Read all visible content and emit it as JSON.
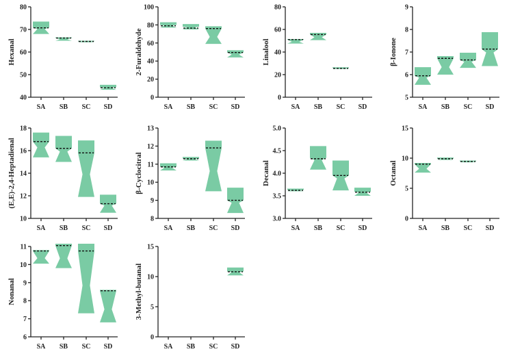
{
  "colors": {
    "violin": "#6cc59a",
    "median": "#111111"
  },
  "chart_data": [
    {
      "type": "violin",
      "ylabel": "Hexanal",
      "ylim": [
        40,
        80
      ],
      "yticks": [
        40,
        50,
        60,
        70,
        80
      ],
      "categories": [
        "SA",
        "SB",
        "SC",
        "SD"
      ],
      "series": [
        {
          "name": "SA",
          "min": 68,
          "max": 73.5,
          "median": 70.7
        },
        {
          "name": "SB",
          "min": 65,
          "max": 66.5,
          "median": 66.2
        },
        {
          "name": "SC",
          "min": 64.3,
          "max": 65,
          "median": 64.7
        },
        {
          "name": "SD",
          "min": 43.3,
          "max": 45.5,
          "median": 44.2
        }
      ]
    },
    {
      "type": "violin",
      "ylabel": "2-Furaldehyde",
      "ylim": [
        0,
        100
      ],
      "yticks": [
        0,
        20,
        40,
        60,
        80,
        100
      ],
      "categories": [
        "SA",
        "SB",
        "SC",
        "SD"
      ],
      "series": [
        {
          "name": "SA",
          "min": 77,
          "max": 83,
          "median": 79
        },
        {
          "name": "SB",
          "min": 75,
          "max": 81,
          "median": 76.5
        },
        {
          "name": "SC",
          "min": 59,
          "max": 78.5,
          "median": 76
        },
        {
          "name": "SD",
          "min": 44,
          "max": 52,
          "median": 49.5
        }
      ]
    },
    {
      "type": "violin",
      "ylabel": "Linalool",
      "ylim": [
        0,
        80
      ],
      "yticks": [
        0,
        20,
        40,
        60,
        80
      ],
      "categories": [
        "SA",
        "SB",
        "SC",
        "SD"
      ],
      "series": [
        {
          "name": "SA",
          "min": 47.5,
          "max": 51.5,
          "median": 51
        },
        {
          "name": "SB",
          "min": 50.5,
          "max": 57,
          "median": 55.5
        },
        {
          "name": "SC",
          "min": 25,
          "max": 26.5,
          "median": 25.5
        },
        {
          "name": "SD"
        }
      ]
    },
    {
      "type": "violin",
      "ylabel": "β-Ionone",
      "ylim": [
        5,
        9
      ],
      "yticks": [
        5,
        6,
        7,
        8,
        9
      ],
      "categories": [
        "SA",
        "SB",
        "SC",
        "SD"
      ],
      "series": [
        {
          "name": "SA",
          "min": 5.55,
          "max": 6.33,
          "median": 5.95
        },
        {
          "name": "SB",
          "min": 6.0,
          "max": 6.82,
          "median": 6.72
        },
        {
          "name": "SC",
          "min": 6.3,
          "max": 6.97,
          "median": 6.65
        },
        {
          "name": "SD",
          "min": 6.38,
          "max": 7.88,
          "median": 7.13
        }
      ]
    },
    {
      "type": "violin",
      "ylabel": "(E,E)-2,4-Heptadienal",
      "ylim": [
        10,
        18
      ],
      "yticks": [
        10,
        12,
        14,
        16,
        18
      ],
      "categories": [
        "SA",
        "SB",
        "SC",
        "SD"
      ],
      "series": [
        {
          "name": "SA",
          "min": 15.4,
          "max": 17.6,
          "median": 16.8
        },
        {
          "name": "SB",
          "min": 15.0,
          "max": 17.3,
          "median": 16.2
        },
        {
          "name": "SC",
          "min": 11.9,
          "max": 16.9,
          "median": 15.8
        },
        {
          "name": "SD",
          "min": 10.5,
          "max": 12.1,
          "median": 11.3
        }
      ]
    },
    {
      "type": "violin",
      "ylabel": "β-Cyclocitral",
      "ylim": [
        8,
        13
      ],
      "yticks": [
        8,
        9,
        10,
        11,
        12,
        13
      ],
      "categories": [
        "SA",
        "SB",
        "SC",
        "SD"
      ],
      "series": [
        {
          "name": "SA",
          "min": 10.65,
          "max": 11.05,
          "median": 10.85
        },
        {
          "name": "SB",
          "min": 11.2,
          "max": 11.4,
          "median": 11.3
        },
        {
          "name": "SC",
          "min": 9.5,
          "max": 12.3,
          "median": 11.9
        },
        {
          "name": "SD",
          "min": 8.3,
          "max": 9.7,
          "median": 9.0
        }
      ]
    },
    {
      "type": "violin",
      "ylabel": "Decanal",
      "ylim": [
        3.0,
        5.0
      ],
      "yticks": [
        "3.0",
        "3.5",
        "4.0",
        "4.5",
        "5.0"
      ],
      "categories": [
        "SA",
        "SB",
        "SC",
        "SD"
      ],
      "series": [
        {
          "name": "SA",
          "min": 3.6,
          "max": 3.66,
          "median": 3.62
        },
        {
          "name": "SB",
          "min": 4.08,
          "max": 4.6,
          "median": 4.32
        },
        {
          "name": "SC",
          "min": 3.62,
          "max": 4.28,
          "median": 3.95
        },
        {
          "name": "SD",
          "min": 3.5,
          "max": 3.68,
          "median": 3.58
        }
      ]
    },
    {
      "type": "violin",
      "ylabel": "Octanal",
      "ylim": [
        0,
        15
      ],
      "yticks": [
        0,
        5,
        10,
        15
      ],
      "categories": [
        "SA",
        "SB",
        "SC",
        "SD"
      ],
      "series": [
        {
          "name": "SA",
          "min": 7.6,
          "max": 9.2,
          "median": 9.0
        },
        {
          "name": "SB",
          "min": 9.7,
          "max": 10.1,
          "median": 9.9
        },
        {
          "name": "SC",
          "min": 9.3,
          "max": 9.6,
          "median": 9.45
        },
        {
          "name": "SD"
        }
      ]
    },
    {
      "type": "violin",
      "ylabel": "Nonanal",
      "ylim": [
        6,
        11
      ],
      "yticks": [
        6,
        7,
        8,
        9,
        10,
        11
      ],
      "categories": [
        "SA",
        "SB",
        "SC",
        "SD"
      ],
      "series": [
        {
          "name": "SA",
          "min": 10.05,
          "max": 10.8,
          "median": 10.75
        },
        {
          "name": "SB",
          "min": 9.8,
          "max": 11.15,
          "median": 11.05
        },
        {
          "name": "SC",
          "min": 7.3,
          "max": 11.15,
          "median": 10.75
        },
        {
          "name": "SD",
          "min": 6.8,
          "max": 8.6,
          "median": 8.55
        }
      ]
    },
    {
      "type": "violin",
      "ylabel": "3-Methyl-butanal",
      "ylim": [
        0,
        15
      ],
      "yticks": [
        0,
        5,
        10,
        15
      ],
      "categories": [
        "SA",
        "SB",
        "SC",
        "SD"
      ],
      "series": [
        {
          "name": "SA"
        },
        {
          "name": "SB"
        },
        {
          "name": "SC"
        },
        {
          "name": "SD",
          "min": 10.2,
          "max": 11.5,
          "median": 10.8
        }
      ]
    }
  ]
}
